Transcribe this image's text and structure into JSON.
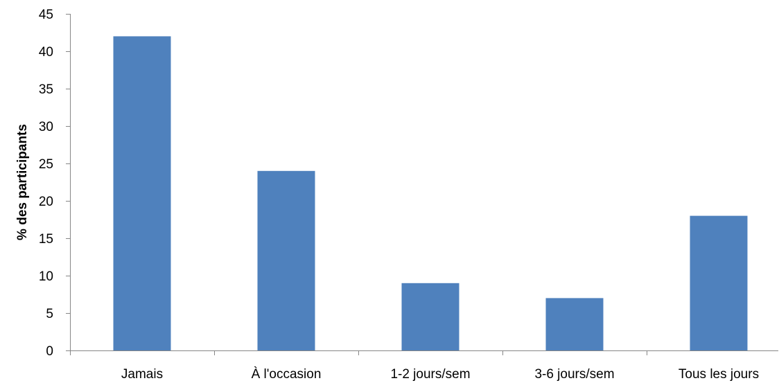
{
  "chart_data": {
    "type": "bar",
    "title": "",
    "xlabel": "",
    "ylabel": "% des participants",
    "categories": [
      "Jamais",
      "À l'occasion",
      "1-2 jours/sem",
      "3-6 jours/sem",
      "Tous les jours"
    ],
    "values": [
      42,
      24,
      9,
      7,
      18
    ],
    "ylim": [
      0,
      45
    ],
    "yticks": [
      0,
      5,
      10,
      15,
      20,
      25,
      30,
      35,
      40,
      45
    ],
    "grid": false,
    "legend": "none",
    "bar_color": "#4f81bd",
    "axis_color": "#868686"
  }
}
